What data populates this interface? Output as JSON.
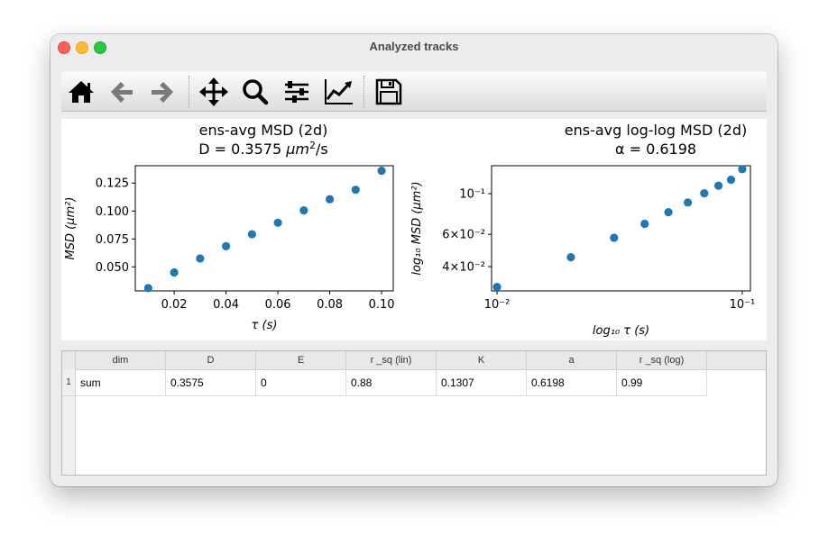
{
  "window": {
    "title": "Analyzed tracks"
  },
  "toolbar": {
    "buttons": [
      {
        "name": "home"
      },
      {
        "name": "back"
      },
      {
        "name": "forward"
      },
      {
        "name": "pan"
      },
      {
        "name": "zoom"
      },
      {
        "name": "configure-subplots"
      },
      {
        "name": "edit-axis"
      },
      {
        "name": "save"
      }
    ]
  },
  "colors": {
    "marker": "#1f77b4"
  },
  "chart_data": [
    {
      "type": "scatter",
      "title": "ens-avg MSD (2d)",
      "subtitle_prefix": "D = 0.3575 ",
      "subtitle_unit": "μm",
      "subtitle_exp": "2",
      "subtitle_suffix": "/s",
      "xlabel": "τ (s)",
      "ylabel": "MSD (μm²)",
      "xlim": [
        0.005,
        0.1045
      ],
      "ylim": [
        0.0285,
        0.1405
      ],
      "xticks": [
        "0.02",
        "0.04",
        "0.06",
        "0.08",
        "0.10"
      ],
      "xtick_values": [
        0.02,
        0.04,
        0.06,
        0.08,
        0.1
      ],
      "yticks": [
        "0.050",
        "0.075",
        "0.100",
        "0.125"
      ],
      "ytick_values": [
        0.05,
        0.075,
        0.1,
        0.125
      ],
      "x": [
        0.01,
        0.02,
        0.03,
        0.04,
        0.05,
        0.06,
        0.07,
        0.08,
        0.09,
        0.1
      ],
      "y": [
        0.031,
        0.045,
        0.0575,
        0.0685,
        0.0792,
        0.0895,
        0.1005,
        0.1105,
        0.119,
        0.136
      ]
    },
    {
      "type": "scatter",
      "log_scale": true,
      "title": "ens-avg log-log MSD (2d)",
      "subtitle": "α = 0.6198",
      "xlabel": "log₁₀ τ (s)",
      "ylabel": "log₁₀ MSD (μm²)",
      "xlim": [
        0.0095,
        0.108
      ],
      "ylim": [
        0.0295,
        0.142
      ],
      "xticks": [
        "10⁻²",
        "10⁻¹"
      ],
      "xtick_values": [
        0.01,
        0.1
      ],
      "yticks": [
        "4×10⁻²",
        "6×10⁻²",
        "10⁻¹"
      ],
      "ytick_values": [
        0.04,
        0.06,
        0.1
      ],
      "x": [
        0.01,
        0.02,
        0.03,
        0.04,
        0.05,
        0.06,
        0.07,
        0.08,
        0.09,
        0.1
      ],
      "y": [
        0.031,
        0.045,
        0.0575,
        0.0685,
        0.0792,
        0.0895,
        0.1005,
        0.1105,
        0.119,
        0.136
      ]
    }
  ],
  "table": {
    "columns": [
      "dim",
      "D",
      "E",
      "r _sq (lin)",
      "K",
      "a",
      "r _sq (log)"
    ],
    "rows": [
      {
        "index": "1",
        "cells": [
          "sum",
          "0.3575",
          "0",
          "0.88",
          "0.1307",
          "0.6198",
          "0.99"
        ]
      }
    ]
  }
}
